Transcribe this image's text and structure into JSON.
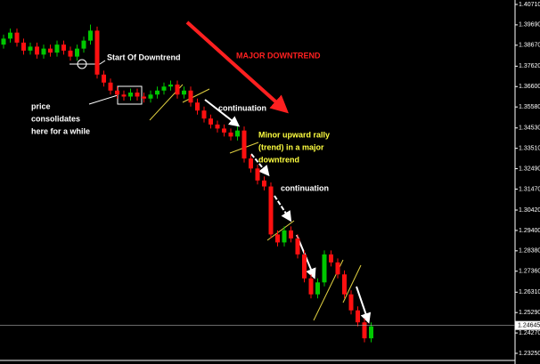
{
  "chart_data": {
    "type": "candlestick",
    "open": [
      1.387,
      1.39,
      1.393,
      1.388,
      1.384,
      1.386,
      1.382,
      1.385,
      1.383,
      1.387,
      1.384,
      1.381,
      1.385,
      1.389,
      1.394,
      1.372,
      1.368,
      1.364,
      1.362,
      1.361,
      1.363,
      1.361,
      1.36,
      1.362,
      1.364,
      1.366,
      1.367,
      1.362,
      1.364,
      1.358,
      1.354,
      1.35,
      1.347,
      1.345,
      1.343,
      1.341,
      1.344,
      1.33,
      1.325,
      1.319,
      1.316,
      1.292,
      1.288,
      1.294,
      1.29,
      1.282,
      1.27,
      1.262,
      1.268,
      1.282,
      1.278,
      1.272,
      1.262,
      1.254,
      1.248,
      1.24
    ],
    "high": [
      1.392,
      1.395,
      1.395,
      1.39,
      1.388,
      1.388,
      1.387,
      1.387,
      1.389,
      1.389,
      1.386,
      1.387,
      1.391,
      1.397,
      1.396,
      1.374,
      1.37,
      1.366,
      1.364,
      1.365,
      1.365,
      1.363,
      1.364,
      1.366,
      1.368,
      1.369,
      1.369,
      1.366,
      1.366,
      1.36,
      1.356,
      1.352,
      1.349,
      1.347,
      1.345,
      1.346,
      1.346,
      1.332,
      1.327,
      1.321,
      1.318,
      1.294,
      1.296,
      1.296,
      1.292,
      1.284,
      1.272,
      1.27,
      1.284,
      1.284,
      1.28,
      1.274,
      1.264,
      1.256,
      1.25,
      1.248
    ],
    "low": [
      1.385,
      1.388,
      1.386,
      1.382,
      1.382,
      1.38,
      1.38,
      1.381,
      1.381,
      1.382,
      1.379,
      1.379,
      1.383,
      1.387,
      1.37,
      1.366,
      1.362,
      1.36,
      1.359,
      1.359,
      1.359,
      1.358,
      1.358,
      1.36,
      1.362,
      1.364,
      1.36,
      1.36,
      1.356,
      1.352,
      1.348,
      1.345,
      1.343,
      1.341,
      1.339,
      1.339,
      1.328,
      1.323,
      1.317,
      1.314,
      1.29,
      1.286,
      1.286,
      1.288,
      1.28,
      1.268,
      1.26,
      1.26,
      1.266,
      1.276,
      1.27,
      1.26,
      1.252,
      1.246,
      1.238,
      1.238
    ],
    "close": [
      1.39,
      1.393,
      1.388,
      1.384,
      1.386,
      1.382,
      1.385,
      1.383,
      1.387,
      1.384,
      1.381,
      1.385,
      1.389,
      1.394,
      1.372,
      1.368,
      1.364,
      1.362,
      1.361,
      1.363,
      1.361,
      1.36,
      1.362,
      1.364,
      1.366,
      1.367,
      1.362,
      1.364,
      1.358,
      1.354,
      1.35,
      1.347,
      1.345,
      1.343,
      1.341,
      1.344,
      1.33,
      1.325,
      1.319,
      1.316,
      1.292,
      1.288,
      1.294,
      1.29,
      1.282,
      1.27,
      1.262,
      1.268,
      1.282,
      1.278,
      1.272,
      1.262,
      1.254,
      1.248,
      1.24,
      1.246
    ],
    "up_color": "#00c800",
    "down_color": "#ff1010",
    "ylim": [
      1.2325,
      1.4071
    ],
    "yticks": [
      {
        "value": 1.4071,
        "label": "1.40710"
      },
      {
        "value": 1.3969,
        "label": "1.39690"
      },
      {
        "value": 1.3867,
        "label": "1.38670"
      },
      {
        "value": 1.3762,
        "label": "1.37620"
      },
      {
        "value": 1.366,
        "label": "1.36600"
      },
      {
        "value": 1.3558,
        "label": "1.35580"
      },
      {
        "value": 1.3453,
        "label": "1.34530"
      },
      {
        "value": 1.3351,
        "label": "1.33510"
      },
      {
        "value": 1.3249,
        "label": "1.32490"
      },
      {
        "value": 1.3147,
        "label": "1.31470"
      },
      {
        "value": 1.3042,
        "label": "1.30420"
      },
      {
        "value": 1.294,
        "label": "1.29400"
      },
      {
        "value": 1.2838,
        "label": "1.28380"
      },
      {
        "value": 1.2736,
        "label": "1.27360"
      },
      {
        "value": 1.2631,
        "label": "1.26310"
      },
      {
        "value": 1.2529,
        "label": "1.25290"
      },
      {
        "value": 1.2427,
        "label": "1.24270"
      },
      {
        "value": 1.2325,
        "label": "1.23250"
      }
    ],
    "last_price": {
      "value": 1.24645,
      "label": "1.24645"
    },
    "grid": false,
    "annotations": [
      {
        "lines": [
          "Start Of Downtrend"
        ],
        "color": "#ffffff"
      },
      {
        "lines": [
          "MAJOR DOWNTREND"
        ],
        "color": "#ff2020"
      },
      {
        "lines": [
          "price",
          "consolidates",
          "here for a while"
        ],
        "color": "#ffffff"
      },
      {
        "lines": [
          "continuation"
        ],
        "color": "#ffffff"
      },
      {
        "lines": [
          "Minor upward rally",
          "(trend) in a major",
          "downtrend"
        ],
        "color": "#ffff40"
      },
      {
        "lines": [
          "continuation"
        ],
        "color": "#ffffff"
      }
    ]
  }
}
